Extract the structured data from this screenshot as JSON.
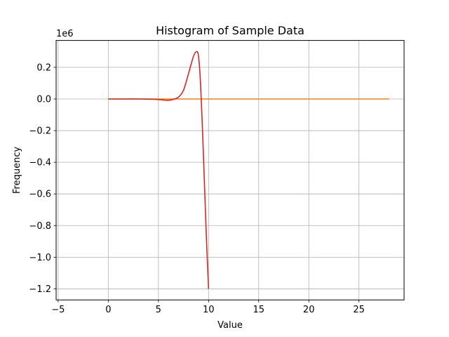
{
  "chart_data": {
    "type": "line",
    "title": "Histogram of Sample Data",
    "xlabel": "Value",
    "ylabel": "Frequency",
    "y_offset_label": "1e6",
    "xlim": [
      -5.2,
      29.5
    ],
    "ylim": [
      -1.27,
      0.37
    ],
    "y_scale_factor": 1000000,
    "grid": true,
    "x_ticks": [
      {
        "value": -5,
        "label": "−5"
      },
      {
        "value": 0,
        "label": "0"
      },
      {
        "value": 5,
        "label": "5"
      },
      {
        "value": 10,
        "label": "10"
      },
      {
        "value": 15,
        "label": "15"
      },
      {
        "value": 20,
        "label": "20"
      },
      {
        "value": 25,
        "label": "25"
      }
    ],
    "y_ticks": [
      {
        "value": 0.2,
        "label": "0.2"
      },
      {
        "value": 0.0,
        "label": "0.0"
      },
      {
        "value": -0.2,
        "label": "−0.2"
      },
      {
        "value": -0.4,
        "label": "−0.4"
      },
      {
        "value": -0.6,
        "label": "−0.6"
      },
      {
        "value": -0.8,
        "label": "−0.8"
      },
      {
        "value": -1.0,
        "label": "−1.0"
      },
      {
        "value": -1.2,
        "label": "−1.2"
      }
    ],
    "series": [
      {
        "color": "#ff7f0e",
        "x": [
          0,
          7,
          14,
          21,
          28
        ],
        "y": [
          0,
          0,
          0,
          0,
          0
        ]
      },
      {
        "color": "#d62728",
        "x": [
          0,
          1,
          2,
          3,
          4,
          5,
          5.5,
          6,
          6.5,
          7,
          7.5,
          8,
          8.5,
          8.8,
          9.0,
          9.2,
          9.4,
          9.6,
          9.8,
          10.0
        ],
        "y": [
          0,
          0,
          0,
          0,
          -0.001,
          -0.003,
          -0.006,
          -0.008,
          -0.002,
          0.012,
          0.055,
          0.16,
          0.27,
          0.3,
          0.27,
          0.1,
          -0.2,
          -0.55,
          -0.9,
          -1.2
        ]
      }
    ]
  }
}
